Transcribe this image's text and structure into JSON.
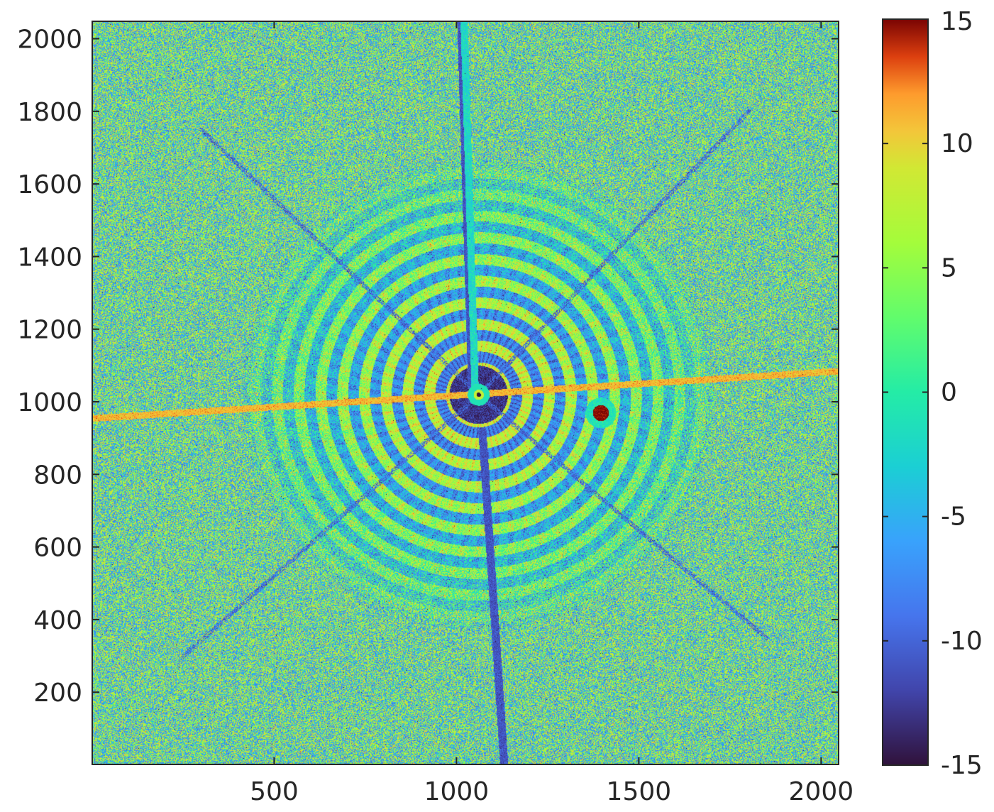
{
  "chart_data": {
    "type": "heatmap",
    "title": "",
    "xlabel": "",
    "ylabel": "",
    "xlim": [
      1,
      2048
    ],
    "ylim": [
      1,
      2048
    ],
    "x_ticks": [
      500,
      1000,
      1500,
      2000
    ],
    "y_ticks": [
      200,
      400,
      600,
      800,
      1000,
      1200,
      1400,
      1600,
      1800,
      2000
    ],
    "x_tick_labels": [
      "500",
      "1000",
      "1500",
      "2000"
    ],
    "y_tick_labels": [
      "200",
      "400",
      "600",
      "800",
      "1000",
      "1200",
      "1400",
      "1600",
      "1800",
      "2000"
    ],
    "colorbar": {
      "colormap": "turbo",
      "range": [
        -15,
        15
      ],
      "ticks": [
        15,
        10,
        5,
        0,
        -5,
        -10,
        -15
      ],
      "tick_labels": [
        "15",
        "10",
        "5",
        "0",
        "-5",
        "-10",
        "-15"
      ]
    },
    "features": {
      "beam_center": [
        1060,
        1020
      ],
      "horizontal_streak": {
        "from": [
          1,
          955
        ],
        "to": [
          2048,
          1085
        ],
        "value": 11
      },
      "vertical_streak_up": {
        "from": [
          1050,
          1040
        ],
        "to": [
          1020,
          2048
        ],
        "value": -2
      },
      "blue_streak_up": {
        "from": [
          1040,
          1040
        ],
        "to": [
          1010,
          2048
        ],
        "value": -11
      },
      "blue_streak_down": {
        "from": [
          1070,
          920
        ],
        "to": [
          1130,
          1
        ],
        "value": -11
      },
      "spot": {
        "center": [
          1395,
          970
        ],
        "value": 15
      },
      "ring_region_radius": 650
    },
    "grid": false
  }
}
